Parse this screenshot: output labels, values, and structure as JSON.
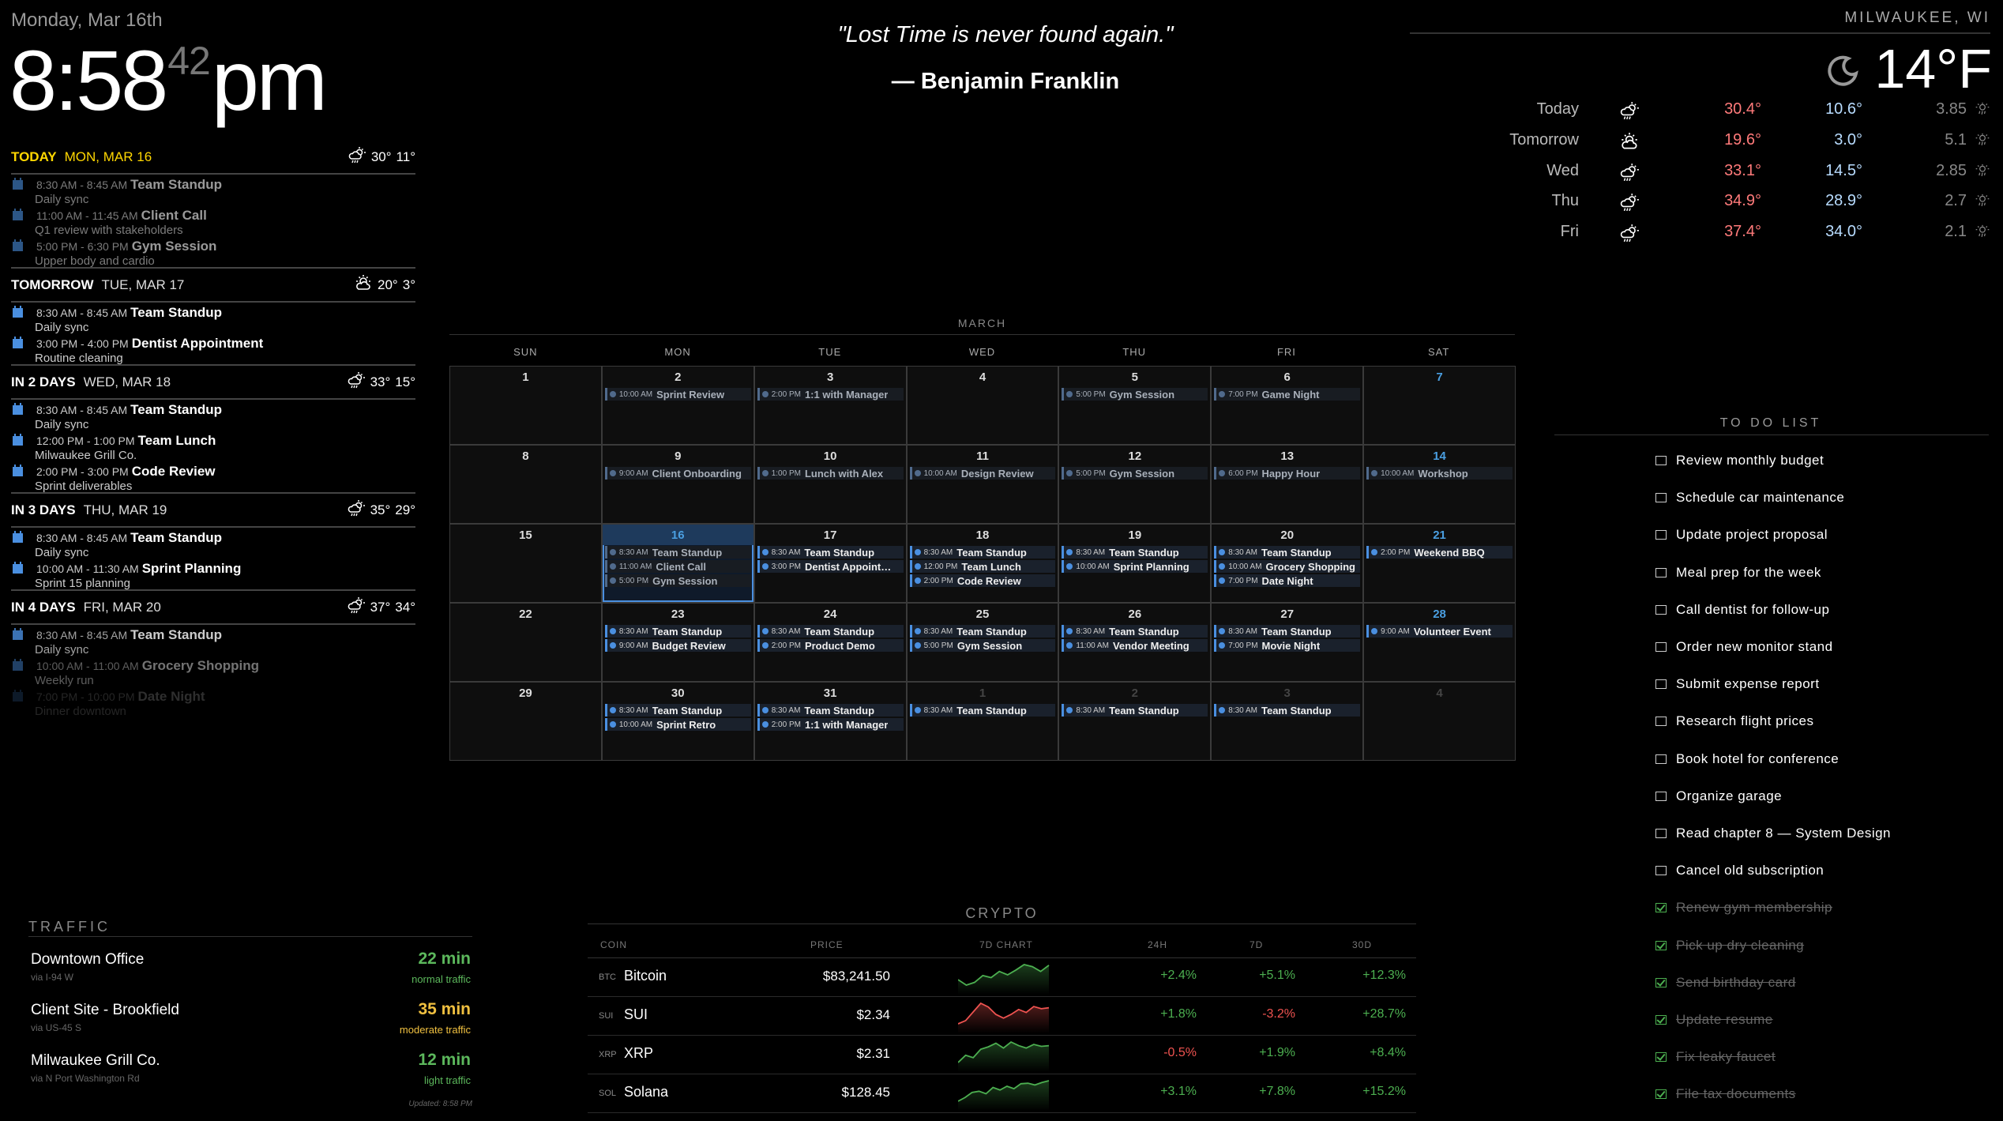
{
  "clock": {
    "date": "Monday, Mar 16th",
    "hours_minutes": "8:58",
    "seconds": "42",
    "period": "pm"
  },
  "quote": {
    "text": "\"Lost Time is never found again.\"",
    "author": "— Benjamin Franklin"
  },
  "agenda": {
    "days": [
      {
        "label": "TODAY",
        "date": "MON, MAR 16",
        "weather_icon": "rain-sun-icon",
        "high": "30°",
        "low": "11°",
        "is_today": true,
        "events": [
          {
            "time": "8:30 AM - 8:45 AM",
            "title": "Team Standup",
            "desc": "Daily sync"
          },
          {
            "time": "11:00 AM - 11:45 AM",
            "title": "Client Call",
            "desc": "Q1 review with stakeholders"
          },
          {
            "time": "5:00 PM - 6:30 PM",
            "title": "Gym Session",
            "desc": "Upper body and cardio"
          }
        ]
      },
      {
        "label": "TOMORROW",
        "date": "TUE, MAR 17",
        "weather_icon": "partly-sunny-icon",
        "high": "20°",
        "low": "3°",
        "events": [
          {
            "time": "8:30 AM - 8:45 AM",
            "title": "Team Standup",
            "desc": "Daily sync"
          },
          {
            "time": "3:00 PM - 4:00 PM",
            "title": "Dentist Appointment",
            "desc": "Routine cleaning"
          }
        ]
      },
      {
        "label": "IN 2 DAYS",
        "date": "WED, MAR 18",
        "weather_icon": "rain-sun-icon",
        "high": "33°",
        "low": "15°",
        "events": [
          {
            "time": "8:30 AM - 8:45 AM",
            "title": "Team Standup",
            "desc": "Daily sync"
          },
          {
            "time": "12:00 PM - 1:00 PM",
            "title": "Team Lunch",
            "desc": "Milwaukee Grill Co."
          },
          {
            "time": "2:00 PM - 3:00 PM",
            "title": "Code Review",
            "desc": "Sprint deliverables"
          }
        ]
      },
      {
        "label": "IN 3 DAYS",
        "date": "THU, MAR 19",
        "weather_icon": "rain-sun-icon",
        "high": "35°",
        "low": "29°",
        "events": [
          {
            "time": "8:30 AM - 8:45 AM",
            "title": "Team Standup",
            "desc": "Daily sync"
          },
          {
            "time": "10:00 AM - 11:30 AM",
            "title": "Sprint Planning",
            "desc": "Sprint 15 planning"
          }
        ]
      },
      {
        "label": "IN 4 DAYS",
        "date": "FRI, MAR 20",
        "weather_icon": "rain-sun-icon",
        "high": "37°",
        "low": "34°",
        "events": [
          {
            "time": "8:30 AM - 8:45 AM",
            "title": "Team Standup",
            "desc": "Daily sync"
          },
          {
            "time": "10:00 AM - 11:00 AM",
            "title": "Grocery Shopping",
            "desc": "Weekly run"
          },
          {
            "time": "7:00 PM - 10:00 PM",
            "title": "Date Night",
            "desc": "Dinner downtown"
          }
        ]
      }
    ]
  },
  "weather": {
    "location": "MILWAUKEE, WI",
    "current_icon": "moon-icon",
    "current_temp": "14°F",
    "forecast": [
      {
        "day": "Today",
        "icon": "rain-sun-icon",
        "high": "30.4°",
        "low": "10.6°",
        "precip": "3.85"
      },
      {
        "day": "Tomorrow",
        "icon": "partly-sunny-icon",
        "high": "19.6°",
        "low": "3.0°",
        "precip": "5.1"
      },
      {
        "day": "Wed",
        "icon": "rain-sun-icon",
        "high": "33.1°",
        "low": "14.5°",
        "precip": "2.85"
      },
      {
        "day": "Thu",
        "icon": "rain-sun-icon",
        "high": "34.9°",
        "low": "28.9°",
        "precip": "2.7"
      },
      {
        "day": "Fri",
        "icon": "rain-sun-icon",
        "high": "37.4°",
        "low": "34.0°",
        "precip": "2.1"
      }
    ]
  },
  "calendar": {
    "month": "MARCH",
    "weekdays": [
      "SUN",
      "MON",
      "TUE",
      "WED",
      "THU",
      "FRI",
      "SAT"
    ],
    "weeks": [
      [
        {
          "day": "1",
          "events": []
        },
        {
          "day": "2",
          "events": [
            {
              "time": "10:00 AM",
              "title": "Sprint Review",
              "dim": true
            }
          ]
        },
        {
          "day": "3",
          "events": [
            {
              "time": "2:00 PM",
              "title": "1:1 with Manager",
              "dim": true
            }
          ]
        },
        {
          "day": "4",
          "events": []
        },
        {
          "day": "5",
          "events": [
            {
              "time": "5:00 PM",
              "title": "Gym Session",
              "dim": true
            }
          ]
        },
        {
          "day": "6",
          "events": [
            {
              "time": "7:00 PM",
              "title": "Game Night",
              "dim": true
            }
          ]
        },
        {
          "day": "7",
          "events": []
        }
      ],
      [
        {
          "day": "8",
          "events": []
        },
        {
          "day": "9",
          "events": [
            {
              "time": "9:00 AM",
              "title": "Client Onboarding",
              "dim": true
            }
          ]
        },
        {
          "day": "10",
          "events": [
            {
              "time": "1:00 PM",
              "title": "Lunch with Alex",
              "dim": true
            }
          ]
        },
        {
          "day": "11",
          "events": [
            {
              "time": "10:00 AM",
              "title": "Design Review",
              "dim": true
            }
          ]
        },
        {
          "day": "12",
          "events": [
            {
              "time": "5:00 PM",
              "title": "Gym Session",
              "dim": true
            }
          ]
        },
        {
          "day": "13",
          "events": [
            {
              "time": "6:00 PM",
              "title": "Happy Hour",
              "dim": true
            }
          ]
        },
        {
          "day": "14",
          "events": [
            {
              "time": "10:00 AM",
              "title": "Workshop",
              "dim": true
            }
          ]
        }
      ],
      [
        {
          "day": "15",
          "events": []
        },
        {
          "day": "16",
          "today": true,
          "events": [
            {
              "time": "8:30 AM",
              "title": "Team Standup",
              "dim": true
            },
            {
              "time": "11:00 AM",
              "title": "Client Call",
              "dim": true
            },
            {
              "time": "5:00 PM",
              "title": "Gym Session",
              "dim": true
            }
          ]
        },
        {
          "day": "17",
          "events": [
            {
              "time": "8:30 AM",
              "title": "Team Standup"
            },
            {
              "time": "3:00 PM",
              "title": "Dentist Appoint…"
            }
          ]
        },
        {
          "day": "18",
          "events": [
            {
              "time": "8:30 AM",
              "title": "Team Standup"
            },
            {
              "time": "12:00 PM",
              "title": "Team Lunch"
            },
            {
              "time": "2:00 PM",
              "title": "Code Review"
            }
          ]
        },
        {
          "day": "19",
          "events": [
            {
              "time": "8:30 AM",
              "title": "Team Standup"
            },
            {
              "time": "10:00 AM",
              "title": "Sprint Planning"
            }
          ]
        },
        {
          "day": "20",
          "events": [
            {
              "time": "8:30 AM",
              "title": "Team Standup"
            },
            {
              "time": "10:00 AM",
              "title": "Grocery Shopping"
            },
            {
              "time": "7:00 PM",
              "title": "Date Night"
            }
          ]
        },
        {
          "day": "21",
          "events": [
            {
              "time": "2:00 PM",
              "title": "Weekend BBQ"
            }
          ]
        }
      ],
      [
        {
          "day": "22",
          "events": []
        },
        {
          "day": "23",
          "events": [
            {
              "time": "8:30 AM",
              "title": "Team Standup"
            },
            {
              "time": "9:00 AM",
              "title": "Budget Review"
            }
          ]
        },
        {
          "day": "24",
          "events": [
            {
              "time": "8:30 AM",
              "title": "Team Standup"
            },
            {
              "time": "2:00 PM",
              "title": "Product Demo"
            }
          ]
        },
        {
          "day": "25",
          "events": [
            {
              "time": "8:30 AM",
              "title": "Team Standup"
            },
            {
              "time": "5:00 PM",
              "title": "Gym Session"
            }
          ]
        },
        {
          "day": "26",
          "events": [
            {
              "time": "8:30 AM",
              "title": "Team Standup"
            },
            {
              "time": "11:00 AM",
              "title": "Vendor Meeting"
            }
          ]
        },
        {
          "day": "27",
          "events": [
            {
              "time": "8:30 AM",
              "title": "Team Standup"
            },
            {
              "time": "7:00 PM",
              "title": "Movie Night"
            }
          ]
        },
        {
          "day": "28",
          "events": [
            {
              "time": "9:00 AM",
              "title": "Volunteer Event"
            }
          ]
        }
      ],
      [
        {
          "day": "29",
          "events": []
        },
        {
          "day": "30",
          "events": [
            {
              "time": "8:30 AM",
              "title": "Team Standup"
            },
            {
              "time": "10:00 AM",
              "title": "Sprint Retro"
            }
          ]
        },
        {
          "day": "31",
          "events": [
            {
              "time": "8:30 AM",
              "title": "Team Standup"
            },
            {
              "time": "2:00 PM",
              "title": "1:1 with Manager"
            }
          ]
        },
        {
          "day": "1",
          "other_month": true,
          "events": [
            {
              "time": "8:30 AM",
              "title": "Team Standup"
            }
          ]
        },
        {
          "day": "2",
          "other_month": true,
          "events": [
            {
              "time": "8:30 AM",
              "title": "Team Standup"
            }
          ]
        },
        {
          "day": "3",
          "other_month": true,
          "events": [
            {
              "time": "8:30 AM",
              "title": "Team Standup"
            }
          ]
        },
        {
          "day": "4",
          "other_month": true,
          "events": []
        }
      ]
    ]
  },
  "todo": {
    "title": "TO DO LIST",
    "items": [
      {
        "text": "Review monthly budget",
        "done": false
      },
      {
        "text": "Schedule car maintenance",
        "done": false
      },
      {
        "text": "Update project proposal",
        "done": false
      },
      {
        "text": "Meal prep for the week",
        "done": false
      },
      {
        "text": "Call dentist for follow-up",
        "done": false
      },
      {
        "text": "Order new monitor stand",
        "done": false
      },
      {
        "text": "Submit expense report",
        "done": false
      },
      {
        "text": "Research flight prices",
        "done": false
      },
      {
        "text": "Book hotel for conference",
        "done": false
      },
      {
        "text": "Organize garage",
        "done": false
      },
      {
        "text": "Read chapter 8 — System Design",
        "done": false
      },
      {
        "text": "Cancel old subscription",
        "done": false
      },
      {
        "text": "Renew gym membership",
        "done": true
      },
      {
        "text": "Pick up dry cleaning",
        "done": true
      },
      {
        "text": "Send birthday card",
        "done": true
      },
      {
        "text": "Update resume",
        "done": true
      },
      {
        "text": "Fix leaky faucet",
        "done": true
      },
      {
        "text": "File tax documents",
        "done": true
      }
    ]
  },
  "traffic": {
    "title": "TRAFFIC",
    "routes": [
      {
        "name": "Downtown Office",
        "via": "via I-94 W",
        "time": "22 min",
        "status": "normal traffic",
        "color": "#5cb85c"
      },
      {
        "name": "Client Site - Brookfield",
        "via": "via US-45 S",
        "time": "35 min",
        "status": "moderate traffic",
        "color": "#f0c040"
      },
      {
        "name": "Milwaukee Grill Co.",
        "via": "via N Port Washington Rd",
        "time": "12 min",
        "status": "light traffic",
        "color": "#5cb85c"
      }
    ],
    "updated": "Updated: 8:58 PM"
  },
  "crypto": {
    "title": "CRYPTO",
    "headers": {
      "coin": "COIN",
      "price": "PRICE",
      "chart": "7D CHART",
      "h24": "24H",
      "d7": "7D",
      "d30": "30D"
    },
    "coins": [
      {
        "symbol": "BTC",
        "name": "Bitcoin",
        "price": "$83,241.50",
        "h24": "+2.4%",
        "d7": "+5.1%",
        "d30": "+12.3%",
        "spark": [
          60,
          52,
          56,
          66,
          63,
          72,
          67,
          74,
          82,
          79,
          72,
          81
        ]
      },
      {
        "symbol": "SUI",
        "name": "SUI",
        "price": "$2.34",
        "h24": "+1.8%",
        "d7": "-3.2%",
        "d30": "+28.7%",
        "spark": [
          42,
          55,
          90,
          125,
          110,
          80,
          65,
          80,
          100,
          88,
          112,
          103,
          107
        ]
      },
      {
        "symbol": "XRP",
        "name": "XRP",
        "price": "$2.31",
        "h24": "-0.5%",
        "d7": "+1.9%",
        "d30": "+8.4%",
        "spark": [
          45,
          75,
          65,
          100,
          110,
          125,
          105,
          130,
          115,
          105,
          120,
          112,
          115
        ]
      },
      {
        "symbol": "SOL",
        "name": "Solana",
        "price": "$128.45",
        "h24": "+3.1%",
        "d7": "+7.8%",
        "d30": "+15.2%",
        "spark": [
          20,
          35,
          55,
          60,
          50,
          75,
          65,
          80,
          70,
          90,
          92,
          85,
          95,
          102
        ]
      }
    ],
    "colors": {
      "up": "#4caf50",
      "down": "#ef5350"
    }
  }
}
